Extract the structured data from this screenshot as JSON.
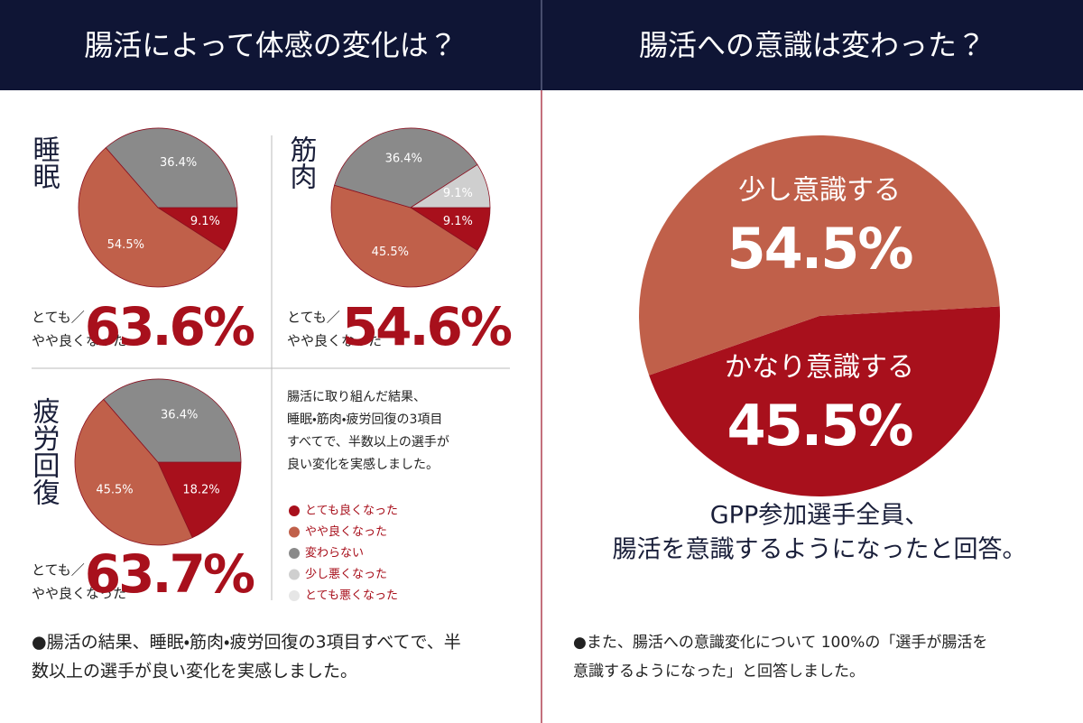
{
  "left": {
    "header": "腸活によって体感の変化は？",
    "note": [
      "腸活に取り組んだ結果、",
      "睡眠・筋肉・疲労回復の3項目",
      "すべてで、半数以上の選手が",
      "良い変化を実感しました。"
    ],
    "legend": [
      {
        "name": "とても良くなった",
        "color": "#a8101c"
      },
      {
        "name": "やや良くなった",
        "color": "#c0604a"
      },
      {
        "name": "変わらない",
        "color": "#8a8a8a"
      },
      {
        "name": "少し悪くなった",
        "color": "#cfcfcf"
      },
      {
        "name": "とても悪くなった",
        "color": "#e6e6e6"
      }
    ],
    "footer": [
      "●腸活の結果、睡眠・筋肉・疲労回復の3項目すべてで、半",
      "数以上の選手が良い変化を実感しました。"
    ]
  },
  "right": {
    "header": "腸活への意識は変わった？",
    "headline": [
      "GPP参加選手全員、",
      "腸活を意識するようになったと回答。"
    ],
    "footer": [
      "●また、腸活への意識変化について 100%の「選手が腸活を",
      "意識するようになった」と回答しました。"
    ]
  },
  "chart_data": [
    {
      "type": "pie",
      "title": "睡眠",
      "values": [
        9.1,
        54.5,
        36.4
      ],
      "value_labels": [
        "9.1%",
        "54.5%",
        "36.4%"
      ],
      "colors": [
        "#a8101c",
        "#c0604a",
        "#8a8a8a"
      ],
      "annotation": {
        "label": [
          "とても／",
          "やや良くなった"
        ],
        "value": "63.6%"
      }
    },
    {
      "type": "pie",
      "title": "筋肉",
      "values": [
        9.1,
        45.5,
        36.4,
        9.1
      ],
      "value_labels": [
        "9.1%",
        "45.5%",
        "36.4%",
        "9.1%"
      ],
      "colors": [
        "#a8101c",
        "#c0604a",
        "#8a8a8a",
        "#cfcfcf"
      ],
      "annotation": {
        "label": [
          "とても／",
          "やや良くなった"
        ],
        "value": "54.6%"
      }
    },
    {
      "type": "pie",
      "title": "疲労回復",
      "values": [
        18.2,
        45.5,
        36.4
      ],
      "value_labels": [
        "18.2%",
        "45.5%",
        "36.4%"
      ],
      "colors": [
        "#a8101c",
        "#c0604a",
        "#8a8a8a"
      ],
      "annotation": {
        "label": [
          "とても／",
          "やや良くなった"
        ],
        "value": "63.7%"
      }
    },
    {
      "type": "pie",
      "categories": [
        "かなり意識する",
        "少し意識する"
      ],
      "values": [
        45.5,
        54.5
      ],
      "value_labels": [
        "45.5%",
        "54.5%"
      ],
      "colors": [
        "#a8101c",
        "#c0604a"
      ]
    }
  ]
}
